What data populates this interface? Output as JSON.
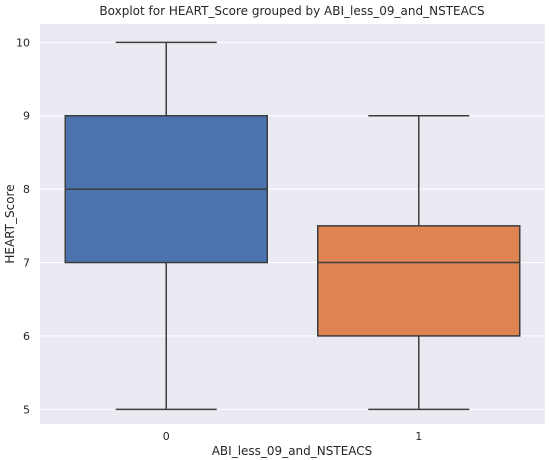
{
  "chart_data": {
    "type": "boxplot",
    "title": "Boxplot for HEART_Score grouped by ABI_less_09_and_NSTEACS",
    "xlabel": "ABI_less_09_and_NSTEACS",
    "ylabel": "HEART_Score",
    "categories": [
      "0",
      "1"
    ],
    "ylim": [
      4.8,
      10.25
    ],
    "yticks": [
      5,
      6,
      7,
      8,
      9,
      10
    ],
    "grid": true,
    "boxes": [
      {
        "category": "0",
        "whisker_low": 5,
        "q1": 7,
        "median": 8,
        "q3": 9,
        "whisker_high": 10,
        "color": "#4c72b0"
      },
      {
        "category": "1",
        "whisker_low": 5,
        "q1": 6,
        "median": 7,
        "q3": 7.5,
        "whisker_high": 9,
        "color": "#dd8452"
      }
    ]
  },
  "colors": {
    "plot_background": "#eaeaf2",
    "grid": "#ffffff",
    "line": "#3d3d3d"
  }
}
